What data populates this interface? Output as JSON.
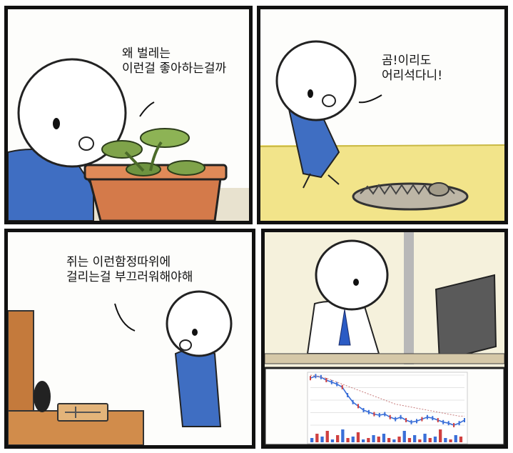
{
  "panel1": {
    "speech_lines": [
      "왜 벌레는",
      "이런걸 좋아하는걸까"
    ]
  },
  "panel2": {
    "speech_lines": [
      "곰!이리도",
      "어리석다니!"
    ]
  },
  "panel3": {
    "speech_lines": [
      "쥐는 이런함정따위에",
      "걸리는걸 부끄러워해야해"
    ]
  },
  "panel4": {},
  "chart_data": {
    "type": "line",
    "title": "",
    "xlabel": "",
    "ylabel": "",
    "series": [
      {
        "values": [
          72,
          74,
          73,
          70,
          68,
          66,
          63,
          55,
          48,
          44,
          40,
          38,
          36,
          35,
          36,
          33,
          31,
          33,
          30,
          28,
          29,
          31,
          33,
          32,
          30,
          28,
          27,
          25,
          27,
          30
        ]
      },
      {
        "values": [
          75,
          74,
          73,
          72,
          70,
          68,
          66,
          64,
          62,
          60,
          58,
          56,
          54,
          52,
          50,
          48,
          46,
          45,
          44,
          43,
          42,
          41,
          40,
          39,
          38,
          37,
          36,
          35,
          34,
          34
        ]
      }
    ],
    "volume": [
      3,
      6,
      4,
      8,
      2,
      5,
      9,
      3,
      4,
      7,
      2,
      3,
      5,
      4,
      6,
      3,
      2,
      4,
      8,
      3,
      5,
      2,
      6,
      3,
      4,
      9,
      3,
      2,
      5,
      4
    ],
    "grid": true
  }
}
